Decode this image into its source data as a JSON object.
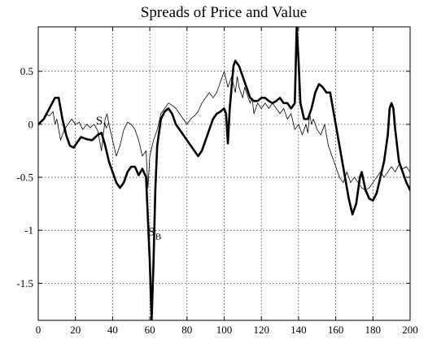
{
  "chart_data": {
    "type": "line",
    "title": "Spreads of Price and Value",
    "xlabel": "",
    "ylabel": "",
    "xlim": [
      0,
      200
    ],
    "ylim": [
      -1.85,
      0.92
    ],
    "grid": true,
    "x_ticks": [
      0,
      20,
      40,
      60,
      80,
      100,
      120,
      140,
      160,
      180,
      200
    ],
    "x_tick_labels": [
      "0",
      "20",
      "40",
      "60",
      "80",
      "100",
      "120",
      "140",
      "160",
      "180",
      "200"
    ],
    "y_ticks": [
      0.5,
      0,
      -0.5,
      -1,
      -1.5
    ],
    "y_tick_labels": [
      "0.5",
      "0",
      "-0.5",
      "-1",
      "-1.5"
    ],
    "series": [
      {
        "name": "S_B",
        "label_main": "S",
        "label_sub": "B",
        "label_at": [
          59,
          -1.05
        ],
        "style": "thick",
        "points": [
          [
            0,
            0.0
          ],
          [
            3,
            0.05
          ],
          [
            6,
            0.15
          ],
          [
            9,
            0.25
          ],
          [
            11,
            0.25
          ],
          [
            13,
            0.05
          ],
          [
            15,
            -0.1
          ],
          [
            17,
            -0.2
          ],
          [
            19,
            -0.22
          ],
          [
            21,
            -0.17
          ],
          [
            23,
            -0.12
          ],
          [
            26,
            -0.14
          ],
          [
            29,
            -0.15
          ],
          [
            32,
            -0.1
          ],
          [
            34,
            -0.08
          ],
          [
            36,
            -0.2
          ],
          [
            38,
            -0.35
          ],
          [
            40,
            -0.45
          ],
          [
            42,
            -0.55
          ],
          [
            44,
            -0.6
          ],
          [
            46,
            -0.55
          ],
          [
            48,
            -0.45
          ],
          [
            50,
            -0.4
          ],
          [
            52,
            -0.4
          ],
          [
            54,
            -0.48
          ],
          [
            56,
            -0.42
          ],
          [
            58,
            -0.5
          ],
          [
            60,
            -1.3
          ],
          [
            61,
            -1.85
          ],
          [
            62,
            -1.3
          ],
          [
            63,
            -0.6
          ],
          [
            64,
            -0.2
          ],
          [
            66,
            0.05
          ],
          [
            68,
            0.12
          ],
          [
            70,
            0.15
          ],
          [
            72,
            0.1
          ],
          [
            74,
            0.0
          ],
          [
            76,
            -0.05
          ],
          [
            78,
            -0.1
          ],
          [
            80,
            -0.15
          ],
          [
            82,
            -0.2
          ],
          [
            84,
            -0.25
          ],
          [
            86,
            -0.3
          ],
          [
            88,
            -0.25
          ],
          [
            90,
            -0.15
          ],
          [
            92,
            -0.05
          ],
          [
            94,
            0.05
          ],
          [
            96,
            0.1
          ],
          [
            98,
            0.12
          ],
          [
            100,
            0.15
          ],
          [
            101,
            0.1
          ],
          [
            102,
            -0.18
          ],
          [
            103,
            0.15
          ],
          [
            104,
            0.35
          ],
          [
            105,
            0.55
          ],
          [
            106,
            0.6
          ],
          [
            108,
            0.55
          ],
          [
            110,
            0.45
          ],
          [
            112,
            0.35
          ],
          [
            114,
            0.25
          ],
          [
            116,
            0.22
          ],
          [
            118,
            0.22
          ],
          [
            120,
            0.25
          ],
          [
            122,
            0.25
          ],
          [
            124,
            0.22
          ],
          [
            126,
            0.2
          ],
          [
            128,
            0.22
          ],
          [
            130,
            0.25
          ],
          [
            132,
            0.2
          ],
          [
            134,
            0.2
          ],
          [
            136,
            0.15
          ],
          [
            138,
            0.2
          ],
          [
            139,
            0.92
          ],
          [
            140,
            0.6
          ],
          [
            141,
            0.2
          ],
          [
            143,
            0.05
          ],
          [
            145,
            0.05
          ],
          [
            147,
            0.15
          ],
          [
            149,
            0.3
          ],
          [
            151,
            0.38
          ],
          [
            153,
            0.35
          ],
          [
            155,
            0.3
          ],
          [
            157,
            0.3
          ],
          [
            159,
            0.1
          ],
          [
            161,
            -0.1
          ],
          [
            163,
            -0.3
          ],
          [
            165,
            -0.5
          ],
          [
            167,
            -0.7
          ],
          [
            169,
            -0.85
          ],
          [
            171,
            -0.75
          ],
          [
            173,
            -0.5
          ],
          [
            174,
            -0.45
          ],
          [
            176,
            -0.62
          ],
          [
            178,
            -0.7
          ],
          [
            180,
            -0.72
          ],
          [
            182,
            -0.65
          ],
          [
            184,
            -0.5
          ],
          [
            186,
            -0.35
          ],
          [
            188,
            -0.1
          ],
          [
            189,
            0.15
          ],
          [
            190,
            0.2
          ],
          [
            191,
            0.15
          ],
          [
            192,
            -0.05
          ],
          [
            194,
            -0.35
          ],
          [
            196,
            -0.45
          ],
          [
            198,
            -0.55
          ],
          [
            200,
            -0.62
          ]
        ]
      },
      {
        "name": "S_V",
        "label_main": "S",
        "label_sub": "V",
        "label_at": [
          31,
          0.0
        ],
        "style": "thin",
        "points": [
          [
            0,
            0.0
          ],
          [
            2,
            0.03
          ],
          [
            4,
            0.1
          ],
          [
            6,
            0.08
          ],
          [
            8,
            0.12
          ],
          [
            9,
            0.0
          ],
          [
            10,
            0.05
          ],
          [
            12,
            -0.15
          ],
          [
            14,
            -0.05
          ],
          [
            16,
            0.0
          ],
          [
            18,
            0.05
          ],
          [
            20,
            0.0
          ],
          [
            22,
            0.02
          ],
          [
            24,
            -0.05
          ],
          [
            26,
            0.0
          ],
          [
            28,
            -0.03
          ],
          [
            30,
            0.0
          ],
          [
            32,
            -0.06
          ],
          [
            34,
            -0.25
          ],
          [
            35,
            -0.1
          ],
          [
            36,
            0.05
          ],
          [
            37,
            0.1
          ],
          [
            38,
            0.0
          ],
          [
            40,
            -0.15
          ],
          [
            42,
            -0.3
          ],
          [
            44,
            -0.2
          ],
          [
            46,
            -0.05
          ],
          [
            48,
            0.02
          ],
          [
            50,
            0.0
          ],
          [
            52,
            -0.05
          ],
          [
            54,
            -0.15
          ],
          [
            56,
            -0.3
          ],
          [
            58,
            -0.25
          ],
          [
            59,
            -0.6
          ],
          [
            60,
            -0.3
          ],
          [
            62,
            -0.15
          ],
          [
            64,
            -0.05
          ],
          [
            66,
            0.1
          ],
          [
            68,
            0.15
          ],
          [
            70,
            0.2
          ],
          [
            72,
            0.18
          ],
          [
            74,
            0.15
          ],
          [
            76,
            0.1
          ],
          [
            78,
            0.05
          ],
          [
            80,
            0.0
          ],
          [
            82,
            0.05
          ],
          [
            84,
            0.08
          ],
          [
            86,
            0.12
          ],
          [
            88,
            0.2
          ],
          [
            90,
            0.25
          ],
          [
            92,
            0.3
          ],
          [
            94,
            0.25
          ],
          [
            96,
            0.3
          ],
          [
            98,
            0.4
          ],
          [
            100,
            0.5
          ],
          [
            102,
            0.35
          ],
          [
            104,
            0.45
          ],
          [
            106,
            0.3
          ],
          [
            107,
            0.45
          ],
          [
            108,
            0.35
          ],
          [
            110,
            0.25
          ],
          [
            111,
            0.35
          ],
          [
            112,
            0.3
          ],
          [
            114,
            0.2
          ],
          [
            115,
            0.25
          ],
          [
            116,
            0.1
          ],
          [
            118,
            0.2
          ],
          [
            120,
            0.15
          ],
          [
            122,
            0.2
          ],
          [
            124,
            0.15
          ],
          [
            126,
            0.2
          ],
          [
            128,
            0.15
          ],
          [
            130,
            0.1
          ],
          [
            132,
            0.15
          ],
          [
            134,
            0.05
          ],
          [
            136,
            0.1
          ],
          [
            138,
            -0.05
          ],
          [
            140,
            0.0
          ],
          [
            142,
            -0.1
          ],
          [
            143,
            -0.05
          ],
          [
            144,
            0.0
          ],
          [
            145,
            -0.08
          ],
          [
            146,
            0.1
          ],
          [
            147,
            0.0
          ],
          [
            148,
            0.05
          ],
          [
            150,
            -0.05
          ],
          [
            152,
            -0.1
          ],
          [
            154,
            0.0
          ],
          [
            156,
            -0.2
          ],
          [
            158,
            -0.3
          ],
          [
            160,
            -0.4
          ],
          [
            162,
            -0.5
          ],
          [
            164,
            -0.55
          ],
          [
            166,
            -0.45
          ],
          [
            168,
            -0.55
          ],
          [
            170,
            -0.5
          ],
          [
            172,
            -0.55
          ],
          [
            174,
            -0.6
          ],
          [
            176,
            -0.62
          ],
          [
            178,
            -0.6
          ],
          [
            180,
            -0.55
          ],
          [
            182,
            -0.5
          ],
          [
            184,
            -0.45
          ],
          [
            186,
            -0.5
          ],
          [
            188,
            -0.45
          ],
          [
            190,
            -0.4
          ],
          [
            192,
            -0.45
          ],
          [
            194,
            -0.38
          ],
          [
            196,
            -0.42
          ],
          [
            198,
            -0.4
          ],
          [
            200,
            -0.45
          ]
        ]
      }
    ]
  }
}
